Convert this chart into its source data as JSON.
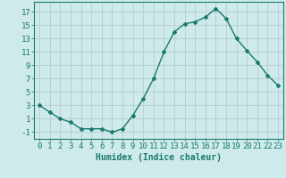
{
  "x": [
    0,
    1,
    2,
    3,
    4,
    5,
    6,
    7,
    8,
    9,
    10,
    11,
    12,
    13,
    14,
    15,
    16,
    17,
    18,
    19,
    20,
    21,
    22,
    23
  ],
  "y": [
    3,
    2,
    1,
    0.5,
    -0.5,
    -0.5,
    -0.5,
    -1,
    -0.5,
    1.5,
    4,
    7,
    11,
    14,
    15.2,
    15.5,
    16.2,
    17.5,
    16,
    13,
    11.2,
    9.5,
    7.5,
    6
  ],
  "line_color": "#1a7a6e",
  "marker": "D",
  "marker_size": 2,
  "bg_color": "#ceeaea",
  "grid_color": "#b0c8c8",
  "xlabel": "Humidex (Indice chaleur)",
  "ylim": [
    -2,
    18.5
  ],
  "xlim": [
    -0.5,
    23.5
  ],
  "yticks": [
    -1,
    1,
    3,
    5,
    7,
    9,
    11,
    13,
    15,
    17
  ],
  "xticks": [
    0,
    1,
    2,
    3,
    4,
    5,
    6,
    7,
    8,
    9,
    10,
    11,
    12,
    13,
    14,
    15,
    16,
    17,
    18,
    19,
    20,
    21,
    22,
    23
  ],
  "font_size": 6.5,
  "line_width": 1.0
}
